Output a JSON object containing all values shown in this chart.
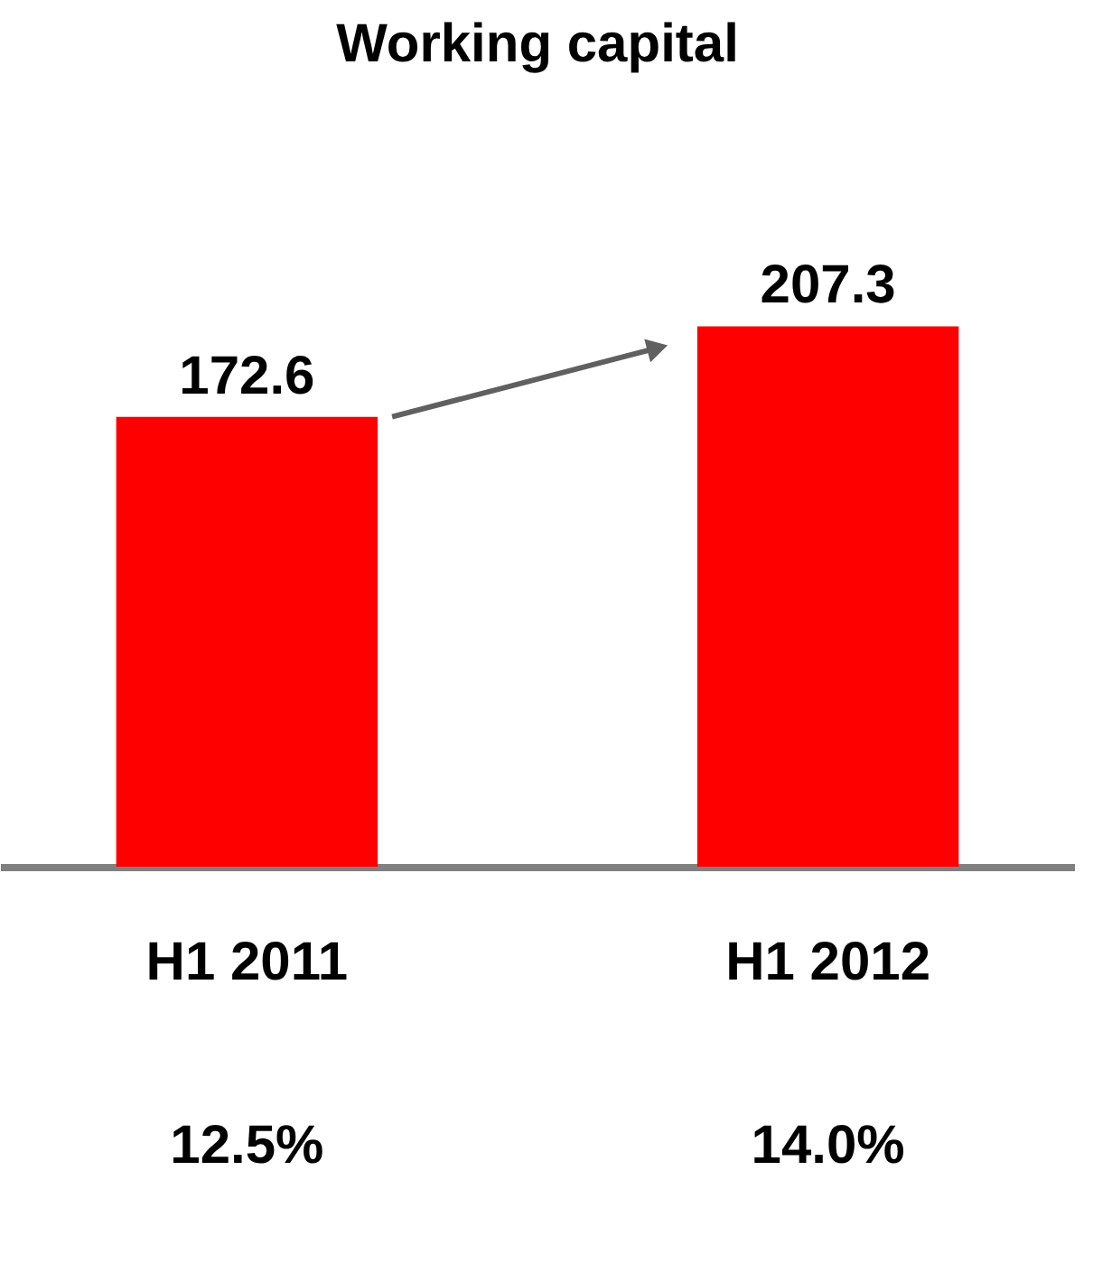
{
  "chart_data": {
    "type": "bar",
    "title": "Working capital",
    "categories": [
      "H1 2011",
      "H1 2012"
    ],
    "values": [
      172.6,
      207.3
    ],
    "color": "#ff0000",
    "data_labels": true,
    "grid": false,
    "tick_labels": "x",
    "annotations": [
      "12.5%",
      "14.0%"
    ]
  }
}
